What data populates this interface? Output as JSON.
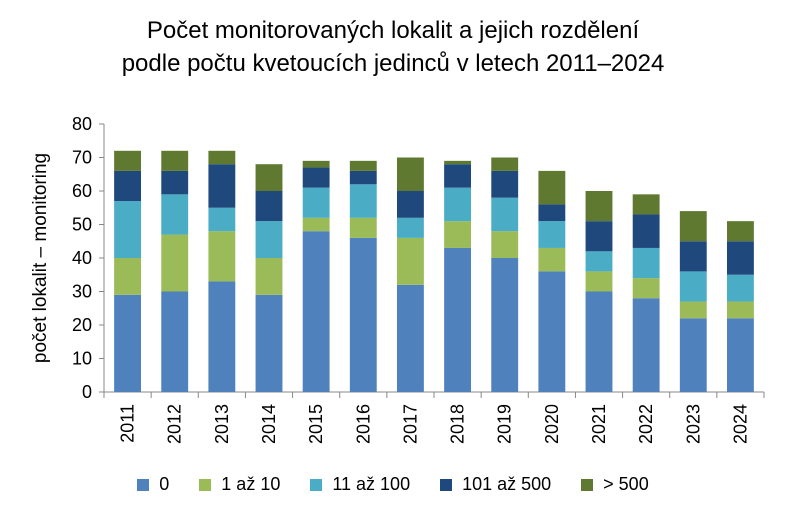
{
  "chart_data": {
    "type": "bar",
    "stacked": true,
    "title": "Počet monitorovaných lokalit a jejich rozdělení",
    "subtitle": "podle počtu kvetoucích jedinců v letech 2011–2024",
    "ylabel": "počet lokalit – monitoring",
    "ylim": [
      0,
      80
    ],
    "yticks": [
      0,
      10,
      20,
      30,
      40,
      50,
      60,
      70,
      80
    ],
    "grid": false,
    "legend_position": "bottom",
    "categories": [
      "2011",
      "2012",
      "2013",
      "2014",
      "2015",
      "2016",
      "2017",
      "2018",
      "2019",
      "2020",
      "2021",
      "2022",
      "2023",
      "2024"
    ],
    "series": [
      {
        "name": "0",
        "color": "#4f81bd",
        "values": [
          29,
          30,
          33,
          29,
          48,
          46,
          32,
          43,
          40,
          36,
          30,
          28,
          22,
          22
        ]
      },
      {
        "name": "1 až 10",
        "color": "#9bbb59",
        "values": [
          11,
          17,
          15,
          11,
          4,
          6,
          14,
          8,
          8,
          7,
          6,
          6,
          5,
          5
        ]
      },
      {
        "name": "11 až 100",
        "color": "#4bacc6",
        "values": [
          17,
          12,
          7,
          11,
          9,
          10,
          6,
          10,
          10,
          8,
          6,
          9,
          9,
          8
        ]
      },
      {
        "name": "101 až 500",
        "color": "#1f497d",
        "values": [
          9,
          7,
          13,
          9,
          6,
          4,
          8,
          7,
          8,
          5,
          9,
          10,
          9,
          10
        ]
      },
      {
        "name": "> 500",
        "color": "#5f7a30",
        "values": [
          6,
          6,
          4,
          8,
          2,
          3,
          10,
          1,
          4,
          10,
          9,
          6,
          9,
          6
        ]
      }
    ]
  }
}
